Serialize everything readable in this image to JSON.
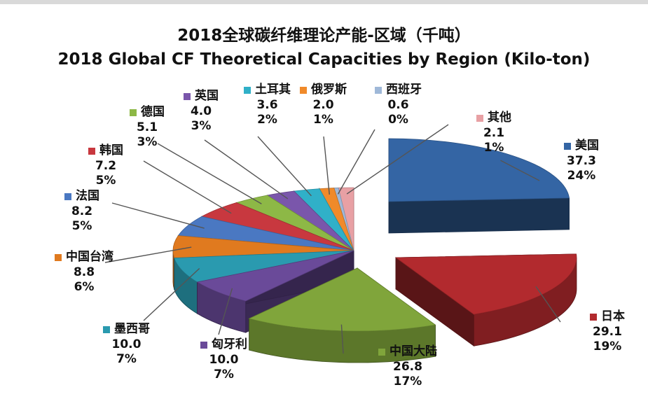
{
  "title": "2018全球碳纤维理论产能-区域（千吨）",
  "subtitle": "2018 Global CF Theoretical Capacities by Region (Kilo-ton)",
  "chart_data": {
    "type": "pie",
    "title": "2018全球碳纤维理论产能-区域（千吨）",
    "subtitle": "2018 Global CF Theoretical Capacities by Region (Kilo-ton)",
    "style": "3d-exploded",
    "slices": [
      {
        "name": "美国",
        "value": 37.3,
        "pct": "24%",
        "color": "#3465a4"
      },
      {
        "name": "日本",
        "value": 29.1,
        "pct": "19%",
        "color": "#b22a2e"
      },
      {
        "name": "中国大陆",
        "value": 26.8,
        "pct": "17%",
        "color": "#80a53b"
      },
      {
        "name": "匈牙利",
        "value": 10.0,
        "pct": "7%",
        "color": "#6a4a99"
      },
      {
        "name": "墨西哥",
        "value": 10.0,
        "pct": "7%",
        "color": "#2a9aaf"
      },
      {
        "name": "中国台湾",
        "value": 8.8,
        "pct": "6%",
        "color": "#e07a1f"
      },
      {
        "name": "法国",
        "value": 8.2,
        "pct": "5%",
        "color": "#4a78c2"
      },
      {
        "name": "韩国",
        "value": 7.2,
        "pct": "5%",
        "color": "#c8383f"
      },
      {
        "name": "德国",
        "value": 5.1,
        "pct": "3%",
        "color": "#8db846"
      },
      {
        "name": "英国",
        "value": 4.0,
        "pct": "3%",
        "color": "#7a56ab"
      },
      {
        "name": "土耳其",
        "value": 3.6,
        "pct": "2%",
        "color": "#30b0c8"
      },
      {
        "name": "俄罗斯",
        "value": 2.0,
        "pct": "1%",
        "color": "#f08a2a"
      },
      {
        "name": "西班牙",
        "value": 0.6,
        "pct": "0%",
        "color": "#9fb8d8"
      },
      {
        "name": "其他",
        "value": 2.1,
        "pct": "1%",
        "color": "#e8a0a4"
      }
    ]
  }
}
